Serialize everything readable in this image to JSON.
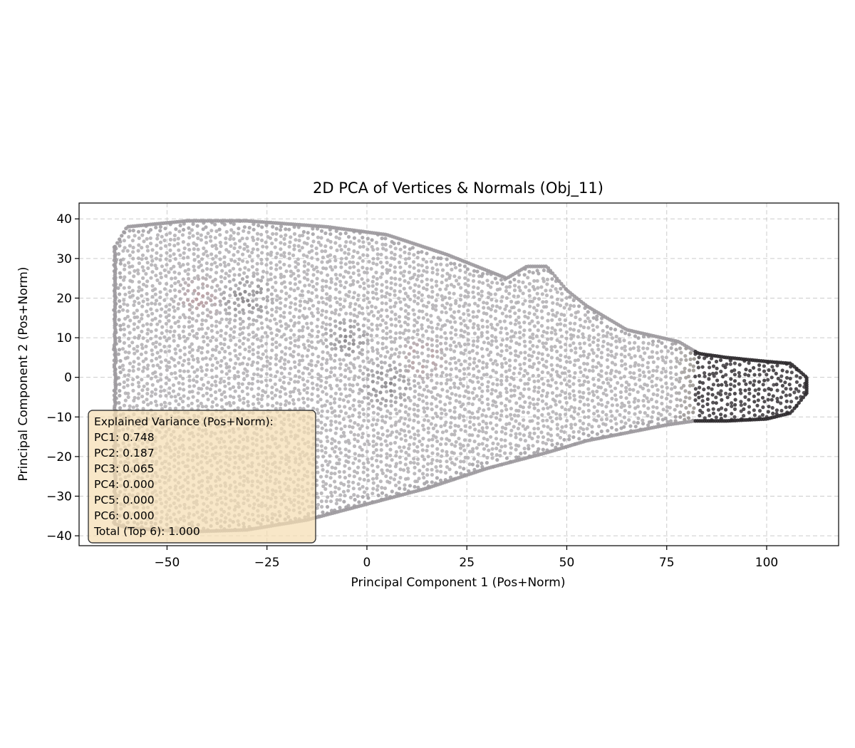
{
  "chart_data": {
    "type": "scatter",
    "title": "2D PCA of Vertices & Normals (Obj_11)",
    "xlabel": "Principal Component 1 (Pos+Norm)",
    "ylabel": "Principal Component 2 (Pos+Norm)",
    "xlim": [
      -72,
      118
    ],
    "ylim": [
      -42.5,
      44
    ],
    "xticks": [
      -50,
      -25,
      0,
      25,
      50,
      75,
      100
    ],
    "xtick_labels": [
      "−50",
      "−25",
      "0",
      "25",
      "50",
      "75",
      "100"
    ],
    "yticks": [
      40,
      30,
      20,
      10,
      0,
      -10,
      -20,
      -30,
      -40
    ],
    "ytick_labels": [
      "40",
      "30",
      "20",
      "10",
      "0",
      "−10",
      "−20",
      "−30",
      "−40"
    ],
    "grid": true,
    "grid_style": "dashed",
    "colors": {
      "points_light": "#b0aeb2",
      "points_mid": "#8d898e",
      "points_dark": "#2e2a2e",
      "points_red": "#b07a80",
      "points_olive": "#6f6650",
      "annotation_bg": "#f5deb3"
    },
    "shape": {
      "top_outline": [
        [
          -63,
          33
        ],
        [
          -60,
          38
        ],
        [
          -45,
          39.5
        ],
        [
          -30,
          39.5
        ],
        [
          -10,
          38
        ],
        [
          5,
          36
        ],
        [
          20,
          31
        ],
        [
          35,
          25
        ],
        [
          40,
          28
        ],
        [
          45,
          28
        ],
        [
          50,
          22
        ],
        [
          55,
          18
        ],
        [
          65,
          12
        ],
        [
          78,
          9
        ],
        [
          83,
          6
        ],
        [
          90,
          5
        ],
        [
          100,
          4
        ],
        [
          106,
          3.5
        ],
        [
          110,
          0
        ]
      ],
      "bottom_outline": [
        [
          -63,
          -37
        ],
        [
          -60,
          -38
        ],
        [
          -45,
          -39
        ],
        [
          -30,
          -38.5
        ],
        [
          -15,
          -36
        ],
        [
          0,
          -32
        ],
        [
          15,
          -28
        ],
        [
          30,
          -23
        ],
        [
          45,
          -19
        ],
        [
          55,
          -16
        ],
        [
          65,
          -14
        ],
        [
          75,
          -12
        ],
        [
          82,
          -11
        ],
        [
          90,
          -11
        ],
        [
          100,
          -10.5
        ],
        [
          106,
          -9
        ],
        [
          110,
          -4
        ]
      ],
      "dark_region_x_from": 82,
      "transition_x": [
        76,
        84
      ],
      "dark_spots": [
        {
          "x": -30,
          "y": 20,
          "r": 7
        },
        {
          "x": -5,
          "y": 10,
          "r": 6
        },
        {
          "x": 5,
          "y": -2,
          "r": 7
        }
      ],
      "red_spots": [
        {
          "x": -42,
          "y": 20,
          "r": 7
        },
        {
          "x": 14,
          "y": 5,
          "r": 7
        }
      ]
    },
    "annotation": {
      "lines": [
        "Explained Variance (Pos+Norm):",
        "PC1: 0.748",
        "PC2: 0.187",
        "PC3: 0.065",
        "PC4: 0.000",
        "PC5: 0.000",
        "PC6: 0.000",
        "Total (Top 6): 1.000"
      ],
      "location": "lower-left"
    }
  }
}
